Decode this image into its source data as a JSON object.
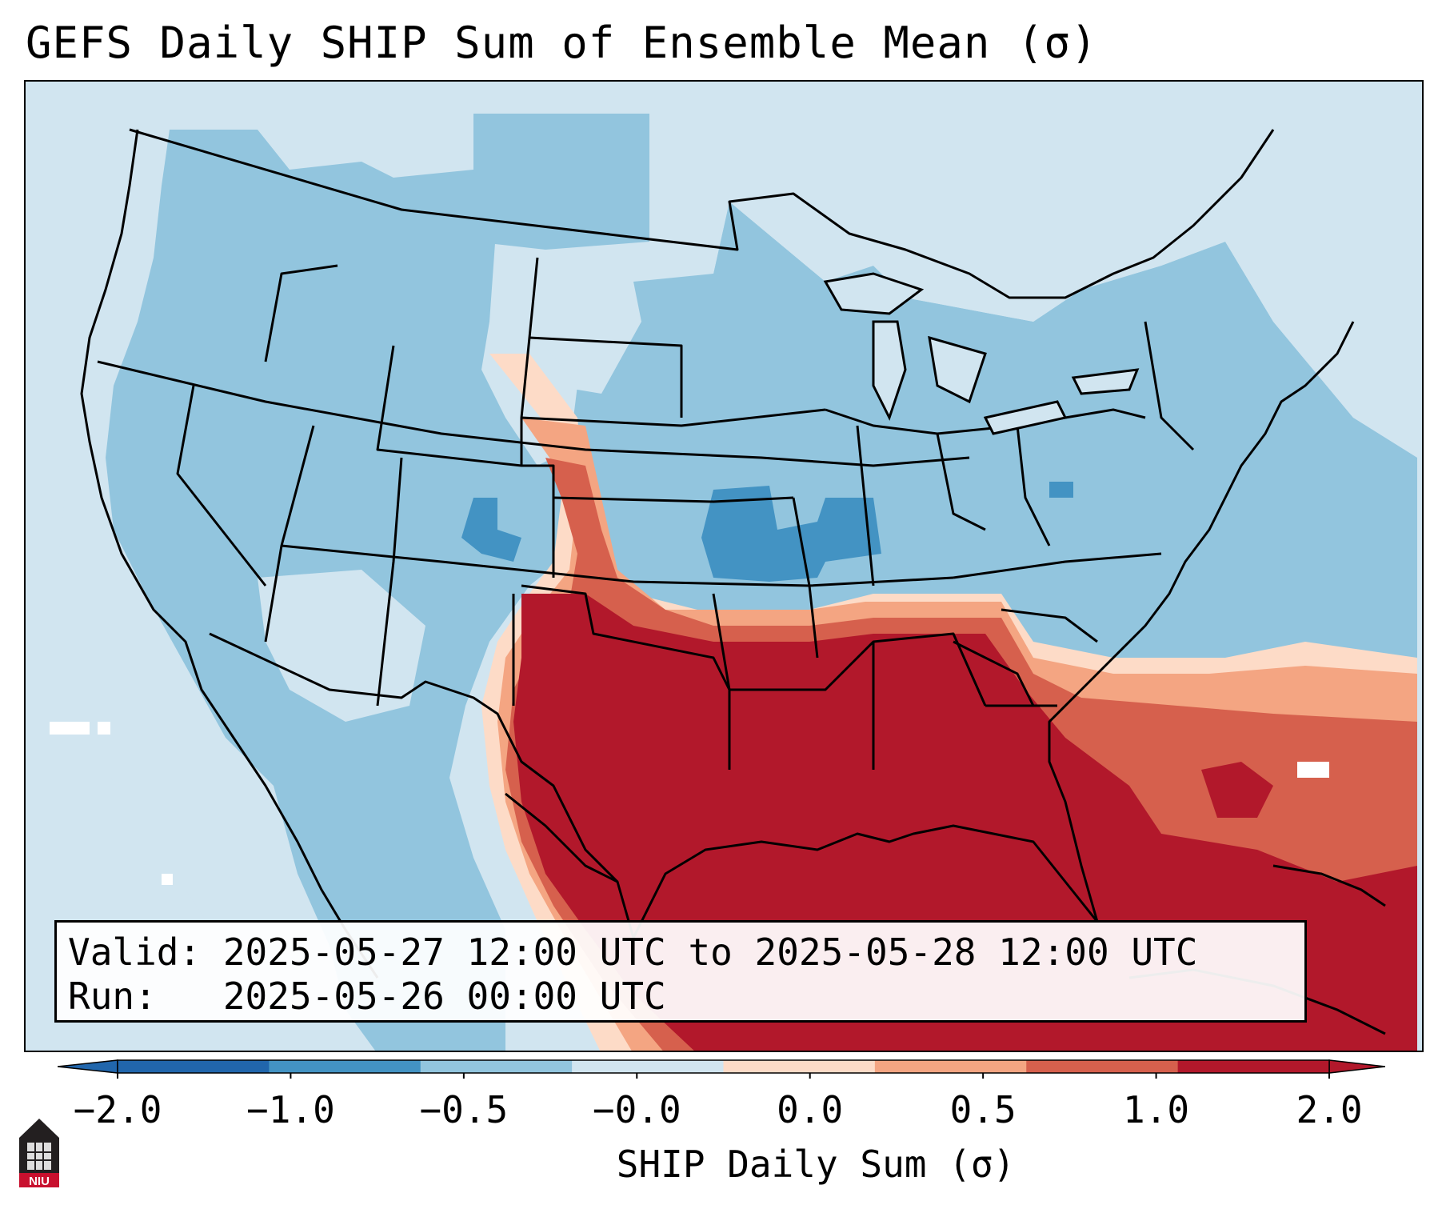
{
  "title": "GEFS Daily SHIP Sum of Ensemble Mean (σ)",
  "info": {
    "valid": "Valid: 2025-05-27 12:00 UTC to 2025-05-28 12:00 UTC",
    "run": "Run:   2025-05-26 00:00 UTC"
  },
  "colorbar": {
    "label": "SHIP Daily Sum (σ)",
    "ticks": [
      "−2.0",
      "−1.0",
      "−0.5",
      "−0.0",
      "0.0",
      "0.5",
      "1.0",
      "2.0"
    ],
    "colors": [
      "#2166ac",
      "#4393c3",
      "#92c5de",
      "#d1e5f0",
      "#fddbc7",
      "#f4a582",
      "#d6604d",
      "#b2182b"
    ],
    "extend": "both"
  },
  "map": {
    "region": "Continental United States",
    "field": "SHIP Daily Sum of Ensemble Mean",
    "units": "σ",
    "colors": {
      "ocean_background": "#d1e5f0",
      "light_blue": "#92c5de",
      "mid_blue": "#4393c3",
      "peach": "#fddbc7",
      "salmon": "#f4a582",
      "red": "#d6604d",
      "dark_red": "#b2182b"
    }
  },
  "logo": {
    "text": "NIU"
  }
}
